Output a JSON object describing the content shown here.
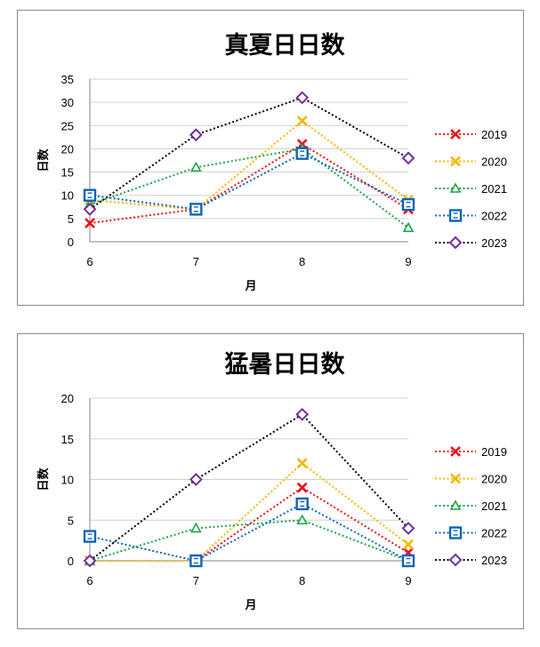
{
  "chart_data": [
    {
      "type": "line",
      "title": "真夏日日数",
      "xlabel": "月",
      "ylabel": "日数",
      "categories": [
        "6",
        "7",
        "8",
        "9"
      ],
      "ylim": [
        0,
        35
      ],
      "yticks": [
        0,
        5,
        10,
        15,
        20,
        25,
        30,
        35
      ],
      "grid": true,
      "legend_position": "right",
      "series": [
        {
          "name": "2019",
          "values": [
            4,
            7,
            21,
            7
          ],
          "color": "#e8111a",
          "marker": "x"
        },
        {
          "name": "2020",
          "values": [
            9,
            7,
            26,
            9
          ],
          "color": "#f5b700",
          "marker": "x"
        },
        {
          "name": "2021",
          "values": [
            8,
            16,
            20,
            3
          ],
          "color": "#1fa34a",
          "marker": "triangle"
        },
        {
          "name": "2022",
          "values": [
            10,
            7,
            19,
            8
          ],
          "color": "#1064b4",
          "marker": "square"
        },
        {
          "name": "2023",
          "values": [
            7,
            23,
            31,
            18
          ],
          "color": "#000000",
          "marker": "diamond"
        }
      ]
    },
    {
      "type": "line",
      "title": "猛暑日日数",
      "xlabel": "月",
      "ylabel": "日数",
      "categories": [
        "6",
        "7",
        "8",
        "9"
      ],
      "ylim": [
        0,
        20
      ],
      "yticks": [
        0,
        5,
        10,
        15,
        20
      ],
      "grid": true,
      "legend_position": "right",
      "series": [
        {
          "name": "2019",
          "values": [
            0,
            0,
            9,
            1
          ],
          "color": "#e8111a",
          "marker": "x"
        },
        {
          "name": "2020",
          "values": [
            0,
            0,
            12,
            2
          ],
          "color": "#f5b700",
          "marker": "x"
        },
        {
          "name": "2021",
          "values": [
            0,
            4,
            5,
            0
          ],
          "color": "#1fa34a",
          "marker": "triangle"
        },
        {
          "name": "2022",
          "values": [
            3,
            0,
            7,
            0
          ],
          "color": "#1064b4",
          "marker": "square"
        },
        {
          "name": "2023",
          "values": [
            0,
            10,
            18,
            4
          ],
          "color": "#000000",
          "marker": "diamond"
        }
      ]
    }
  ],
  "diamond_color": "#7030a0"
}
